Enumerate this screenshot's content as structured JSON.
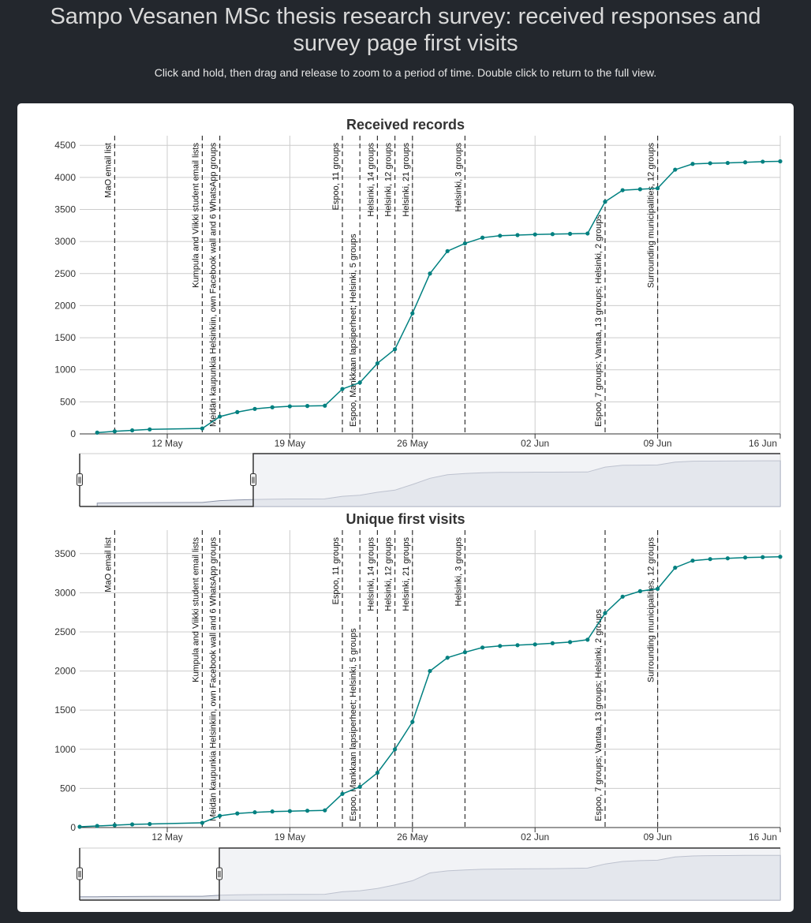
{
  "header": {
    "title_line1": "Sampo Vesanen MSc thesis research survey: received responses and",
    "title_line2": "survey page first visits",
    "subtitle": "Click and hold, then drag and release to zoom to a period of time. Double click to return to the full view."
  },
  "colors": {
    "background": "#23272d",
    "panel": "#ffffff",
    "series": "#008080",
    "navigator_fill": "#a9b1c4",
    "grid": "#cccccc"
  },
  "chart_data": [
    {
      "type": "line",
      "title": "Received records",
      "x_ticks": [
        "12 May",
        "19 May",
        "26 May",
        "02 Jun",
        "09 Jun",
        "16 Jun"
      ],
      "y_ticks": [
        0,
        500,
        1000,
        1500,
        2000,
        2500,
        3000,
        3500,
        4000,
        4500
      ],
      "ylim": [
        0,
        4650
      ],
      "xlim": [
        "2019-05-07",
        "2019-06-16"
      ],
      "grid": true,
      "annotations": [
        {
          "x": "2019-05-09",
          "label": "MaO email list"
        },
        {
          "x": "2019-05-14",
          "label": "Kumpula and Viikki student email lists"
        },
        {
          "x": "2019-05-15",
          "label": "Meidän kaupunkia Helsinkiin, own Facebook wall and 6 WhatsApp groups"
        },
        {
          "x": "2019-05-22",
          "label": "Espoo, 11 groups"
        },
        {
          "x": "2019-05-23",
          "label": "Espoo, Mankkaan lapsiperheet; Helsinki, 5 groups"
        },
        {
          "x": "2019-05-24",
          "label": "Helsinki, 14 groups"
        },
        {
          "x": "2019-05-25",
          "label": "Helsinki, 12 groups"
        },
        {
          "x": "2019-05-26",
          "label": "Helsinki, 21 groups"
        },
        {
          "x": "2019-05-29",
          "label": "Helsinki, 3 groups"
        },
        {
          "x": "2019-06-06",
          "label": "Espoo, 7 groups; Vantaa, 13 groups; Helsinki, 2 groups"
        },
        {
          "x": "2019-06-09",
          "label": "Surrounding municipalities, 12 groups"
        }
      ],
      "series": [
        {
          "x": [
            "2019-05-08",
            "2019-05-09",
            "2019-05-10",
            "2019-05-11",
            "2019-05-14",
            "2019-05-15",
            "2019-05-16",
            "2019-05-17",
            "2019-05-18",
            "2019-05-19",
            "2019-05-20",
            "2019-05-21",
            "2019-05-22",
            "2019-05-23",
            "2019-05-24",
            "2019-05-25",
            "2019-05-26",
            "2019-05-27",
            "2019-05-28",
            "2019-05-29",
            "2019-05-30",
            "2019-05-31",
            "2019-06-01",
            "2019-06-02",
            "2019-06-03",
            "2019-06-04",
            "2019-06-05",
            "2019-06-06",
            "2019-06-07",
            "2019-06-08",
            "2019-06-09",
            "2019-06-10",
            "2019-06-11",
            "2019-06-12",
            "2019-06-13",
            "2019-06-14",
            "2019-06-15",
            "2019-06-16"
          ],
          "y": [
            20,
            40,
            55,
            70,
            85,
            270,
            340,
            390,
            415,
            430,
            435,
            440,
            700,
            800,
            1100,
            1320,
            1880,
            2500,
            2850,
            2970,
            3060,
            3090,
            3100,
            3110,
            3115,
            3120,
            3125,
            3620,
            3800,
            3815,
            3830,
            4120,
            4210,
            4220,
            4225,
            4235,
            4245,
            4250
          ]
        }
      ]
    },
    {
      "type": "line",
      "title": "Unique first visits",
      "x_ticks": [
        "12 May",
        "19 May",
        "26 May",
        "02 Jun",
        "09 Jun",
        "16 Jun"
      ],
      "y_ticks": [
        0,
        500,
        1000,
        1500,
        2000,
        2500,
        3000,
        3500
      ],
      "ylim": [
        0,
        3800
      ],
      "xlim": [
        "2019-05-07",
        "2019-06-16"
      ],
      "grid": true,
      "annotations": [
        {
          "x": "2019-05-09",
          "label": "MaO email list"
        },
        {
          "x": "2019-05-14",
          "label": "Kumpula and Viikki student email lists"
        },
        {
          "x": "2019-05-15",
          "label": "Meidän kaupunkia Helsinkiin, own Facebook wall and 6 WhatsApp groups"
        },
        {
          "x": "2019-05-22",
          "label": "Espoo, 11 groups"
        },
        {
          "x": "2019-05-23",
          "label": "Espoo, Mankkaan lapsiperheet; Helsinki, 5 groups"
        },
        {
          "x": "2019-05-24",
          "label": "Helsinki, 14 groups"
        },
        {
          "x": "2019-05-25",
          "label": "Helsinki, 12 groups"
        },
        {
          "x": "2019-05-26",
          "label": "Helsinki, 21 groups"
        },
        {
          "x": "2019-05-29",
          "label": "Helsinki, 3 groups"
        },
        {
          "x": "2019-06-06",
          "label": "Espoo, 7 groups; Vantaa, 13 groups; Helsinki, 2 groups"
        },
        {
          "x": "2019-06-09",
          "label": "Surrounding municipalities, 12 groups"
        }
      ],
      "series": [
        {
          "x": [
            "2019-05-07",
            "2019-05-08",
            "2019-05-09",
            "2019-05-10",
            "2019-05-11",
            "2019-05-14",
            "2019-05-15",
            "2019-05-16",
            "2019-05-17",
            "2019-05-18",
            "2019-05-19",
            "2019-05-20",
            "2019-05-21",
            "2019-05-22",
            "2019-05-23",
            "2019-05-24",
            "2019-05-25",
            "2019-05-26",
            "2019-05-27",
            "2019-05-28",
            "2019-05-29",
            "2019-05-30",
            "2019-05-31",
            "2019-06-01",
            "2019-06-02",
            "2019-06-03",
            "2019-06-04",
            "2019-06-05",
            "2019-06-06",
            "2019-06-07",
            "2019-06-08",
            "2019-06-09",
            "2019-06-10",
            "2019-06-11",
            "2019-06-12",
            "2019-06-13",
            "2019-06-14",
            "2019-06-15",
            "2019-06-16"
          ],
          "y": [
            10,
            20,
            30,
            40,
            45,
            60,
            150,
            180,
            195,
            205,
            210,
            215,
            220,
            430,
            520,
            700,
            1000,
            1350,
            2000,
            2170,
            2240,
            2300,
            2320,
            2330,
            2340,
            2355,
            2370,
            2400,
            2740,
            2950,
            3020,
            3050,
            3320,
            3410,
            3430,
            3440,
            3450,
            3455,
            3460
          ]
        }
      ]
    }
  ]
}
